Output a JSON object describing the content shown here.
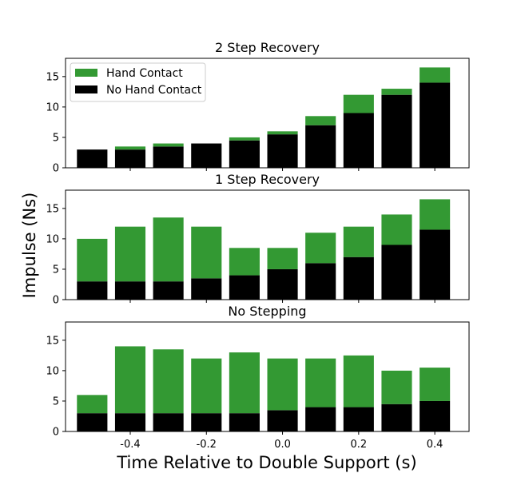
{
  "colors": {
    "hand": "#339933",
    "nohand": "#000000"
  },
  "figure": {
    "xlabel": "Time Relative to Double Support (s)",
    "ylabel": "Impulse (Ns)"
  },
  "legend": {
    "placement": "top-left",
    "entries": [
      "Hand Contact",
      "No Hand Contact"
    ]
  },
  "chart_data": [
    {
      "type": "bar",
      "stacked": true,
      "title": "2 Step Recovery",
      "x": [
        -0.5,
        -0.4,
        -0.3,
        -0.2,
        -0.1,
        0.0,
        0.1,
        0.2,
        0.3,
        0.4
      ],
      "series": [
        {
          "name": "No Hand Contact",
          "values": [
            3,
            3,
            3.5,
            4,
            4.5,
            5.5,
            7,
            9,
            12,
            14
          ]
        },
        {
          "name": "Hand Contact",
          "values": [
            0,
            0.5,
            0.5,
            0,
            0.5,
            0.5,
            1.5,
            3,
            1,
            2.5
          ]
        }
      ],
      "ylim": [
        0,
        18
      ],
      "yticks": [
        "0",
        "5",
        "10",
        "15"
      ],
      "xlim": [
        -0.57,
        0.49
      ]
    },
    {
      "type": "bar",
      "stacked": true,
      "title": "1 Step Recovery",
      "x": [
        -0.5,
        -0.4,
        -0.3,
        -0.2,
        -0.1,
        0.0,
        0.1,
        0.2,
        0.3,
        0.4
      ],
      "series": [
        {
          "name": "No Hand Contact",
          "values": [
            3,
            3,
            3,
            3.5,
            4,
            5,
            6,
            7,
            9,
            11.5
          ]
        },
        {
          "name": "Hand Contact",
          "values": [
            7,
            9,
            10.5,
            8.5,
            4.5,
            3.5,
            5,
            5,
            5,
            5
          ]
        }
      ],
      "ylim": [
        0,
        18
      ],
      "yticks": [
        "0",
        "5",
        "10",
        "15"
      ],
      "xlim": [
        -0.57,
        0.49
      ]
    },
    {
      "type": "bar",
      "stacked": true,
      "title": "No Stepping",
      "x": [
        -0.5,
        -0.4,
        -0.3,
        -0.2,
        -0.1,
        0.0,
        0.1,
        0.2,
        0.3,
        0.4
      ],
      "series": [
        {
          "name": "No Hand Contact",
          "values": [
            3,
            3,
            3,
            3,
            3,
            3.5,
            4,
            4,
            4.5,
            5
          ]
        },
        {
          "name": "Hand Contact",
          "values": [
            3,
            11,
            10.5,
            9,
            10,
            8.5,
            8,
            8.5,
            5.5,
            5.5
          ]
        }
      ],
      "ylim": [
        0,
        18
      ],
      "yticks": [
        "0",
        "5",
        "10",
        "15"
      ],
      "xlim": [
        -0.57,
        0.49
      ],
      "xticks": [
        "-0.4",
        "-0.2",
        "0.0",
        "0.2",
        "0.4"
      ],
      "xtick_values": [
        -0.4,
        -0.2,
        0.0,
        0.2,
        0.4
      ]
    }
  ]
}
